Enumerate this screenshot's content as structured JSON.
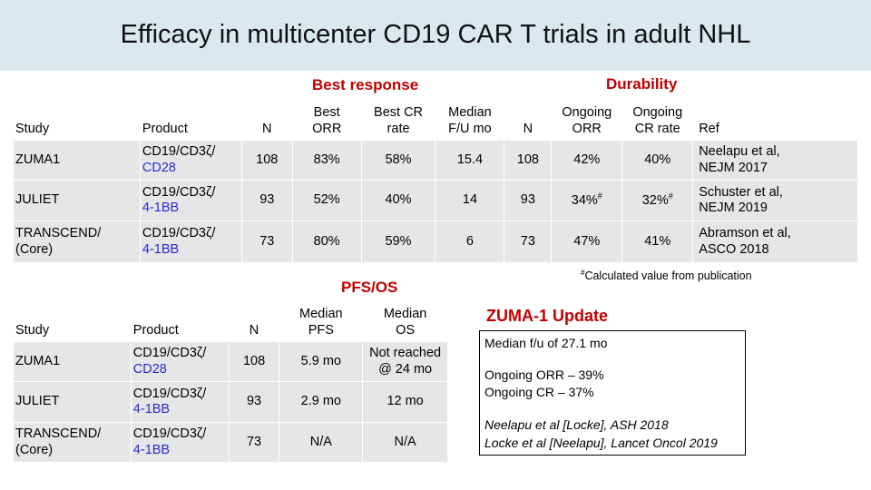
{
  "title": "Efficacy in multicenter CD19 CAR T trials in adult NHL",
  "top_table": {
    "group_best_response": "Best response",
    "group_durability": "Durability",
    "headers": {
      "study": "Study",
      "product": "Product",
      "n": "N",
      "best_orr": [
        "Best",
        "ORR"
      ],
      "best_cr": [
        "Best CR",
        "rate"
      ],
      "median_fu": [
        "Median",
        "F/U mo"
      ],
      "n2": "N",
      "ongoing_orr": [
        "Ongoing",
        "ORR"
      ],
      "ongoing_cr": [
        "Ongoing",
        "CR rate"
      ],
      "ref": "Ref"
    },
    "rows": [
      {
        "study": [
          "ZUMA1",
          ""
        ],
        "product": [
          "CD19/CD3ζ/",
          "CD28"
        ],
        "n": "108",
        "best_orr": "83%",
        "best_cr": "58%",
        "median_fu": "15.4",
        "n2": "108",
        "ongoing_orr": "42%",
        "ongoing_cr": "40%",
        "ref": [
          "Neelapu et al,",
          "NEJM 2017"
        ]
      },
      {
        "study": [
          "JULIET",
          ""
        ],
        "product": [
          "CD19/CD3ζ/",
          "4-1BB"
        ],
        "n": "93",
        "best_orr": "52%",
        "best_cr": "40%",
        "median_fu": "14",
        "n2": "93",
        "ongoing_orr": "34%",
        "ongoing_cr": "32%",
        "ref": [
          "Schuster et al,",
          "NEJM 2019"
        ]
      },
      {
        "study": [
          "TRANSCEND/",
          "(Core)"
        ],
        "product": [
          "CD19/CD3ζ/",
          "4-1BB"
        ],
        "n": "73",
        "best_orr": "80%",
        "best_cr": "59%",
        "median_fu": "6",
        "n2": "73",
        "ongoing_orr": "47%",
        "ongoing_cr": "41%",
        "ref": [
          "Abramson et al,",
          "ASCO 2018"
        ]
      }
    ],
    "superscript_mark": "#"
  },
  "footnote": {
    "mark": "#",
    "text": "Calculated value from publication"
  },
  "bottom_table": {
    "group_label": "PFS/OS",
    "headers": {
      "study": "Study",
      "product": "Product",
      "n": "N",
      "median_pfs": [
        "Median",
        "PFS"
      ],
      "median_os": [
        "Median",
        "OS"
      ]
    },
    "rows": [
      {
        "study": [
          "ZUMA1",
          ""
        ],
        "product": [
          "CD19/CD3ζ/",
          "CD28"
        ],
        "n": "108",
        "pfs": "5.9 mo",
        "os": [
          "Not reached",
          "@ 24 mo"
        ]
      },
      {
        "study": [
          "JULIET",
          ""
        ],
        "product": [
          "CD19/CD3ζ/",
          "4-1BB"
        ],
        "n": "93",
        "pfs": "2.9 mo",
        "os": [
          "12 mo",
          ""
        ]
      },
      {
        "study": [
          "TRANSCEND/",
          "(Core)"
        ],
        "product": [
          "CD19/CD3ζ/",
          "4-1BB"
        ],
        "n": "73",
        "pfs": "N/A",
        "os": [
          "N/A",
          ""
        ]
      }
    ]
  },
  "update": {
    "title": "ZUMA-1 Update",
    "median_fu": "Median f/u of 27.1 mo",
    "ongoing_orr": "Ongoing ORR – 39%",
    "ongoing_cr": "Ongoing CR – 37%",
    "ref1": "Neelapu et al [Locke], ASH 2018",
    "ref2": "Locke et al [Neelapu], Lancet Oncol 2019"
  },
  "colors": {
    "title_band": "#dbe9ee",
    "accent_red": "#c00000",
    "cell_gray": "#e6e6e6",
    "product_blue": "#2a2ad6"
  }
}
